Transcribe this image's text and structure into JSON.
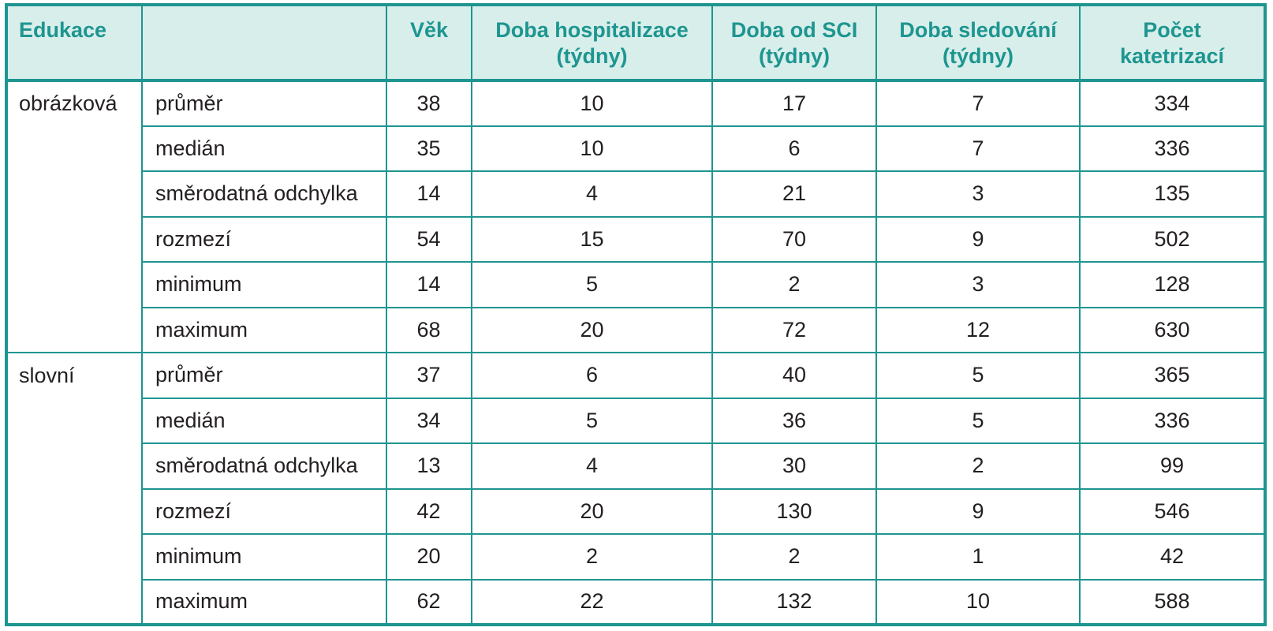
{
  "table": {
    "headers": [
      {
        "line1": "Edukace",
        "line2": ""
      },
      {
        "line1": "",
        "line2": ""
      },
      {
        "line1": "Věk",
        "line2": ""
      },
      {
        "line1": "Doba hospitalizace",
        "line2": "(týdny)"
      },
      {
        "line1": "Doba od SCI",
        "line2": "(týdny)"
      },
      {
        "line1": "Doba sledování",
        "line2": "(týdny)"
      },
      {
        "line1": "Počet",
        "line2": "katetrizací"
      }
    ],
    "rows": [
      {
        "group": "obrázková",
        "stat": "průměr",
        "values": [
          "38",
          "10",
          "17",
          "7",
          "334"
        ]
      },
      {
        "group": "",
        "stat": "medián",
        "values": [
          "35",
          "10",
          "6",
          "7",
          "336"
        ]
      },
      {
        "group": "",
        "stat": "směrodatná odchylka",
        "values": [
          "14",
          "4",
          "21",
          "3",
          "135"
        ]
      },
      {
        "group": "",
        "stat": "rozmezí",
        "values": [
          "54",
          "15",
          "70",
          "9",
          "502"
        ]
      },
      {
        "group": "",
        "stat": "minimum",
        "values": [
          "14",
          "5",
          "2",
          "3",
          "128"
        ]
      },
      {
        "group": "",
        "stat": "maximum",
        "values": [
          "68",
          "20",
          "72",
          "12",
          "630"
        ]
      },
      {
        "group": "slovní",
        "stat": "průměr",
        "values": [
          "37",
          "6",
          "40",
          "5",
          "365"
        ]
      },
      {
        "group": "",
        "stat": "medián",
        "values": [
          "34",
          "5",
          "36",
          "5",
          "336"
        ]
      },
      {
        "group": "",
        "stat": "směrodatná odchylka",
        "values": [
          "13",
          "4",
          "30",
          "2",
          "99"
        ]
      },
      {
        "group": "",
        "stat": "rozmezí",
        "values": [
          "42",
          "20",
          "130",
          "9",
          "546"
        ]
      },
      {
        "group": "",
        "stat": "minimum",
        "values": [
          "20",
          "2",
          "2",
          "1",
          "42"
        ]
      },
      {
        "group": "",
        "stat": "maximum",
        "values": [
          "62",
          "22",
          "132",
          "10",
          "588"
        ]
      }
    ]
  },
  "colors": {
    "border": "#1e9590",
    "header_bg": "#d7eeea",
    "header_text": "#1e9590",
    "body_text": "#231f20"
  }
}
